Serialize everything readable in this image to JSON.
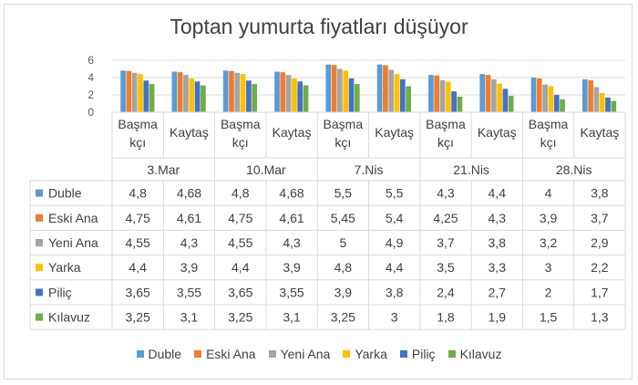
{
  "chart_data": {
    "type": "bar",
    "title": "Toptan yumurta fiyatları düşüyor",
    "groups": [
      "3.Mar",
      "10.Mar",
      "7.Nis",
      "21.Nis",
      "28.Nis"
    ],
    "subcategories": [
      "Başma\nkçı",
      "Kaytaş"
    ],
    "yaxis_ticks": [
      "0",
      "2",
      "4",
      "6"
    ],
    "ylim": [
      0,
      6
    ],
    "legend_position": "bottom",
    "data_table": true,
    "series": [
      {
        "name": "Duble",
        "color": "#5b9bd5",
        "values": [
          4.8,
          4.68,
          4.8,
          4.68,
          5.5,
          5.5,
          4.3,
          4.4,
          4,
          3.8
        ]
      },
      {
        "name": "Eski Ana",
        "color": "#ed7d31",
        "values": [
          4.75,
          4.61,
          4.75,
          4.61,
          5.45,
          5.4,
          4.25,
          4.3,
          3.9,
          3.7
        ]
      },
      {
        "name": "Yeni Ana",
        "color": "#a5a5a5",
        "values": [
          4.55,
          4.3,
          4.55,
          4.3,
          5,
          4.9,
          3.7,
          3.8,
          3.2,
          2.9
        ]
      },
      {
        "name": "Yarka",
        "color": "#ffc000",
        "values": [
          4.4,
          3.9,
          4.4,
          3.9,
          4.8,
          4.4,
          3.5,
          3.3,
          3,
          2.2
        ]
      },
      {
        "name": "Piliç",
        "color": "#4472c4",
        "values": [
          3.65,
          3.55,
          3.65,
          3.55,
          3.9,
          3.8,
          2.4,
          2.7,
          2,
          1.7
        ]
      },
      {
        "name": "Kılavuz",
        "color": "#70ad47",
        "values": [
          3.25,
          3.1,
          3.25,
          3.1,
          3.25,
          3,
          1.8,
          1.9,
          1.5,
          1.3
        ]
      }
    ]
  }
}
